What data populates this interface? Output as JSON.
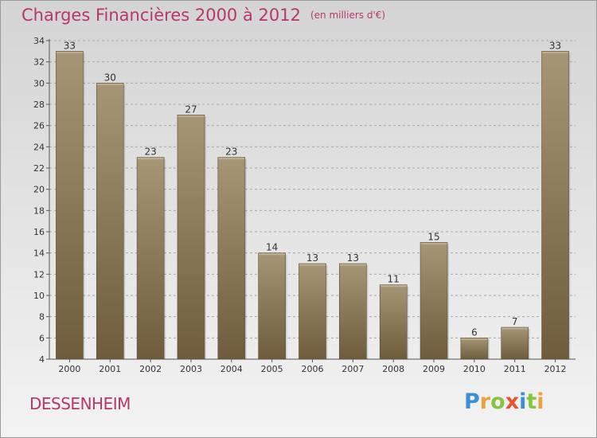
{
  "header": {
    "title": "Charges Financières 2000 à 2012",
    "subtitle": "(en milliers d'€)"
  },
  "footer": {
    "place": "DESSENHEIM",
    "logo_text": "Proxiti"
  },
  "colors": {
    "title": "#b5386a",
    "bar_top": "#a69676",
    "bar_bottom": "#6e5c3c",
    "grid": "#a8a8a8"
  },
  "chart_data": {
    "type": "bar",
    "categories": [
      "2000",
      "2001",
      "2002",
      "2003",
      "2004",
      "2005",
      "2006",
      "2007",
      "2008",
      "2009",
      "2010",
      "2011",
      "2012"
    ],
    "values": [
      33,
      30,
      23,
      27,
      23,
      14,
      13,
      13,
      11,
      15,
      6,
      7,
      33
    ],
    "title": "Charges Financières 2000 à 2012",
    "ylim": [
      4,
      34
    ],
    "yticks": [
      4,
      6,
      8,
      10,
      12,
      14,
      16,
      18,
      20,
      22,
      24,
      26,
      28,
      30,
      32,
      34
    ],
    "grid": true,
    "data_labels": true
  }
}
